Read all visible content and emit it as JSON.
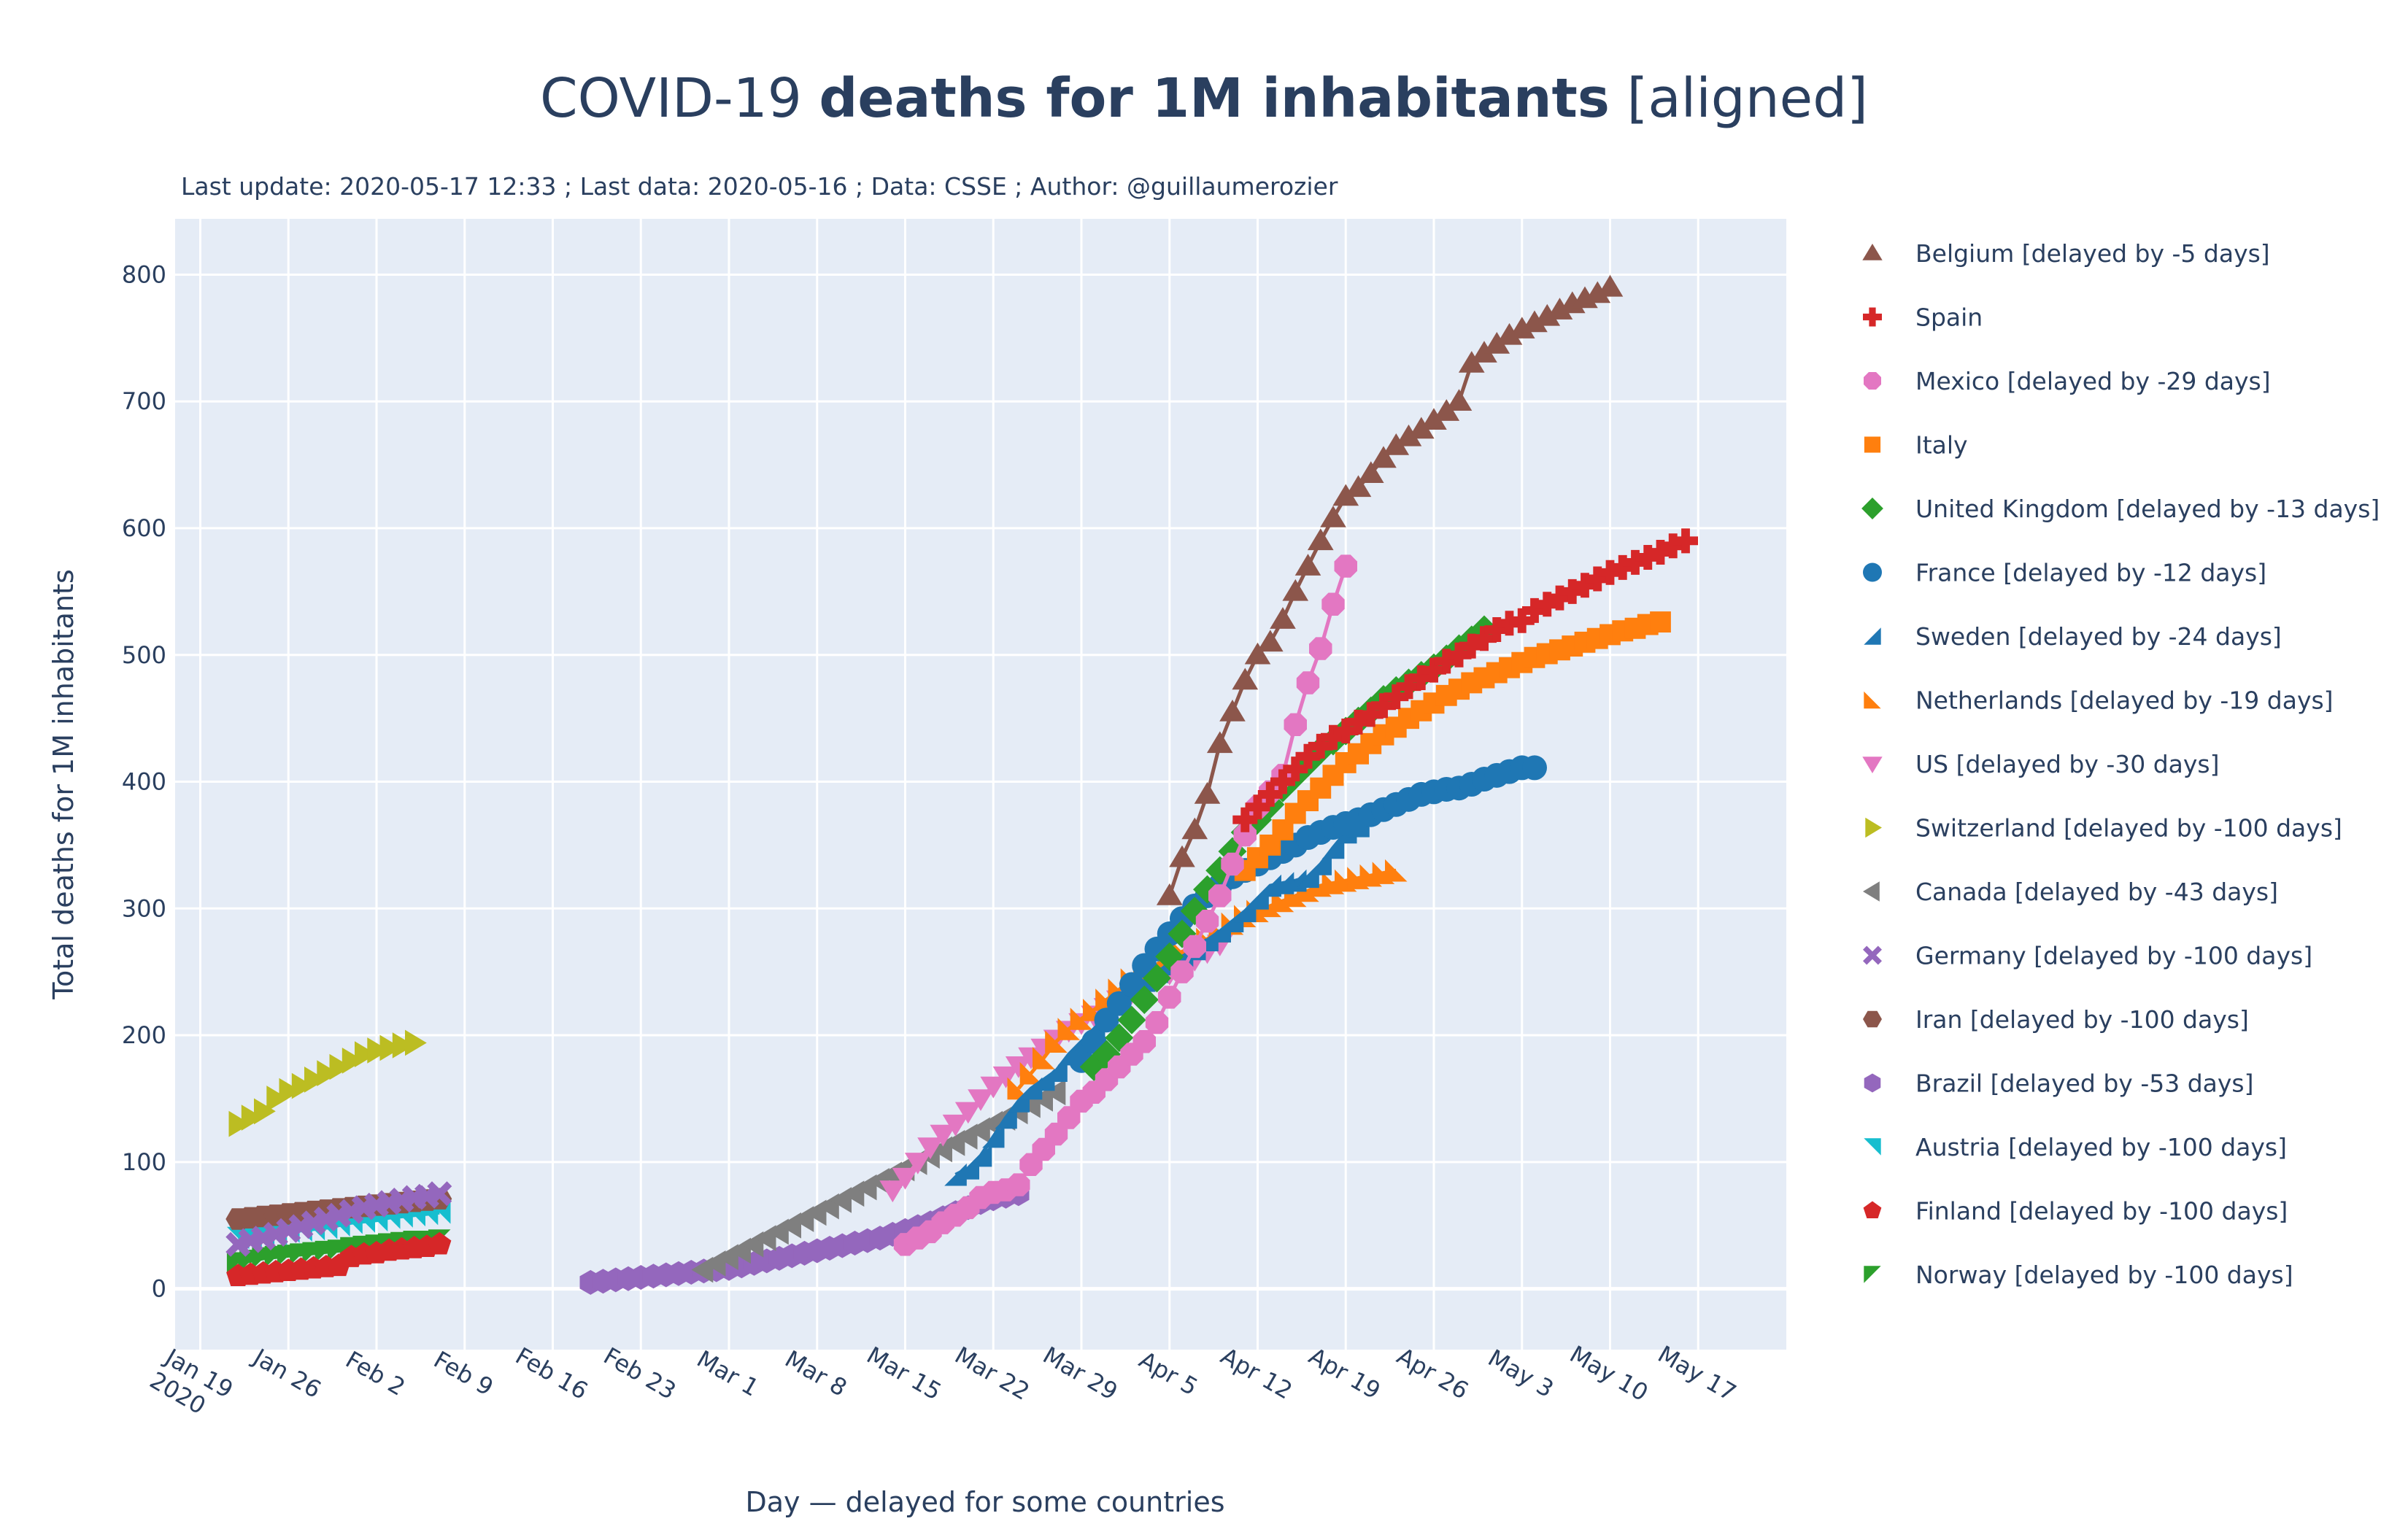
{
  "chart_data": {
    "type": "scatter",
    "mode": "lines+markers",
    "title": {
      "prefix": "COVID-19 ",
      "bold": "deaths for 1M inhabitants",
      "suffix": " [aligned]"
    },
    "subtitle": "Last update: 2020-05-17 12:33 ; Last data: 2020-05-16 ; Data: CSSE ; Author: @guillaumerozier",
    "xlabel": "Day — delayed for some countries",
    "ylabel": "Total deaths  for 1M inhabitants",
    "x_range": [
      "2020-01-17",
      "2020-05-24"
    ],
    "ylim": [
      -48,
      844
    ],
    "grid": true,
    "plot_bgcolor": "#e5ecf6",
    "x_ticks": [
      {
        "date": "2020-01-19",
        "label": "Jan 19",
        "sub": "2020"
      },
      {
        "date": "2020-01-26",
        "label": "Jan 26"
      },
      {
        "date": "2020-02-02",
        "label": "Feb 2"
      },
      {
        "date": "2020-02-09",
        "label": "Feb 9"
      },
      {
        "date": "2020-02-16",
        "label": "Feb 16"
      },
      {
        "date": "2020-02-23",
        "label": "Feb 23"
      },
      {
        "date": "2020-03-01",
        "label": "Mar 1"
      },
      {
        "date": "2020-03-08",
        "label": "Mar 8"
      },
      {
        "date": "2020-03-15",
        "label": "Mar 15"
      },
      {
        "date": "2020-03-22",
        "label": "Mar 22"
      },
      {
        "date": "2020-03-29",
        "label": "Mar 29"
      },
      {
        "date": "2020-04-05",
        "label": "Apr 5"
      },
      {
        "date": "2020-04-12",
        "label": "Apr 12"
      },
      {
        "date": "2020-04-19",
        "label": "Apr 19"
      },
      {
        "date": "2020-04-26",
        "label": "Apr 26"
      },
      {
        "date": "2020-05-03",
        "label": "May 3"
      },
      {
        "date": "2020-05-10",
        "label": "May 10"
      },
      {
        "date": "2020-05-17",
        "label": "May 17"
      }
    ],
    "y_ticks": [
      0,
      100,
      200,
      300,
      400,
      500,
      600,
      700,
      800
    ],
    "legend_position": "right",
    "series": [
      {
        "name": "Belgium [delayed by -5 days]",
        "color": "#8c564b",
        "symbol": "triangle-up",
        "line": true,
        "start": "2020-04-05",
        "values": [
          310,
          340,
          362,
          390,
          430,
          455,
          480,
          500,
          510,
          528,
          550,
          570,
          590,
          608,
          625,
          632,
          643,
          655,
          665,
          672,
          678,
          685,
          692,
          700,
          730,
          738,
          745,
          752,
          757,
          762,
          767,
          772,
          777,
          781,
          785,
          790
        ]
      },
      {
        "name": "Spain",
        "color": "#d62728",
        "symbol": "cross",
        "line": false,
        "start": "2020-04-11",
        "values": [
          370,
          380,
          390,
          400,
          410,
          420,
          428,
          435,
          440,
          447,
          453,
          460,
          467,
          475,
          482,
          488,
          495,
          500,
          507,
          513,
          520,
          525,
          527,
          535,
          540,
          545,
          550,
          555,
          560,
          565,
          569,
          573,
          577,
          581,
          586,
          590
        ]
      },
      {
        "name": "Mexico [delayed by -29 days]",
        "color": "#e377c2",
        "symbol": "octagon",
        "line": true,
        "start": "2020-03-15",
        "values": [
          35,
          40,
          45,
          52,
          58,
          64,
          72,
          76,
          78,
          82,
          98,
          110,
          122,
          135,
          148,
          155,
          165,
          175,
          185,
          195,
          210,
          230,
          250,
          270,
          290,
          310,
          335,
          358,
          380,
          392,
          405,
          445,
          478,
          505,
          540,
          570
        ]
      },
      {
        "name": "Italy",
        "color": "#ff7f0e",
        "symbol": "square",
        "line": false,
        "start": "2020-04-11",
        "values": [
          330,
          340,
          350,
          362,
          375,
          385,
          395,
          405,
          415,
          422,
          430,
          437,
          443,
          450,
          456,
          462,
          468,
          473,
          478,
          482,
          486,
          490,
          494,
          498,
          501,
          504,
          507,
          510,
          513,
          516,
          519,
          521,
          524,
          526
        ]
      },
      {
        "name": "United Kingdom [delayed by -13 days]",
        "color": "#2ca02c",
        "symbol": "diamond",
        "line": false,
        "start": "2020-03-30",
        "values": [
          175,
          185,
          198,
          212,
          228,
          245,
          262,
          280,
          298,
          315,
          330,
          345,
          360,
          370,
          382,
          395,
          405,
          415,
          425,
          432,
          440,
          448,
          456,
          465,
          472,
          478,
          484,
          490,
          497,
          505,
          512,
          520
        ]
      },
      {
        "name": "France [delayed by -12 days]",
        "color": "#1f77b4",
        "symbol": "circle",
        "line": false,
        "start": "2020-03-29",
        "values": [
          180,
          195,
          212,
          225,
          240,
          255,
          268,
          280,
          292,
          302,
          310,
          318,
          325,
          330,
          335,
          340,
          345,
          350,
          356,
          360,
          364,
          367,
          370,
          374,
          378,
          382,
          386,
          390,
          392,
          394,
          395,
          398,
          402,
          405,
          408,
          411,
          411
        ]
      },
      {
        "name": "Sweden [delayed by -24 days]",
        "color": "#1f77b4",
        "symbol": "triangle-sw",
        "line": true,
        "start": "2020-03-19",
        "values": [
          90,
          95,
          105,
          120,
          135,
          148,
          158,
          165,
          172,
          185,
          195,
          205,
          215,
          225,
          235,
          243,
          250,
          256,
          262,
          268,
          275,
          282,
          290,
          298,
          308,
          318,
          320,
          322,
          325,
          335,
          348,
          360,
          365
        ]
      },
      {
        "name": "Netherlands [delayed by -19 days]",
        "color": "#ff7f0e",
        "symbol": "triangle-se",
        "line": true,
        "start": "2020-03-24",
        "values": [
          158,
          170,
          182,
          195,
          205,
          213,
          220,
          228,
          236,
          244,
          250,
          256,
          262,
          266,
          270,
          276,
          282,
          288,
          294,
          298,
          302,
          306,
          310,
          314,
          318,
          320,
          322,
          324,
          326,
          328,
          330
        ]
      },
      {
        "name": "US [delayed by -30 days]",
        "color": "#e377c2",
        "symbol": "triangle-down",
        "line": true,
        "start": "2020-03-14",
        "values": [
          78,
          88,
          100,
          112,
          122,
          130,
          140,
          150,
          160,
          168,
          176,
          183,
          190,
          197,
          204,
          210,
          216,
          222,
          228,
          234,
          239,
          244,
          249,
          254,
          260,
          266,
          272
        ]
      },
      {
        "name": "Switzerland [delayed by -100 days]",
        "color": "#bcbd22",
        "symbol": "triangle-right",
        "line": true,
        "start": "2020-01-22",
        "values": [
          130,
          135,
          140,
          150,
          156,
          160,
          165,
          170,
          175,
          180,
          185,
          188,
          190,
          192,
          194
        ]
      },
      {
        "name": "Canada [delayed by -43 days]",
        "color": "#7f7f7f",
        "symbol": "triangle-left",
        "line": true,
        "start": "2020-02-28",
        "values": [
          15,
          20,
          25,
          30,
          35,
          40,
          45,
          50,
          55,
          60,
          65,
          70,
          75,
          80,
          85,
          90,
          95,
          100,
          105,
          110,
          115,
          120,
          125,
          130,
          135,
          140,
          145,
          150,
          155
        ]
      },
      {
        "name": "Germany [delayed by -100 days]",
        "color": "#9467bd",
        "symbol": "x",
        "line": true,
        "start": "2020-01-22",
        "values": [
          35,
          38,
          40,
          43,
          46,
          49,
          52,
          55,
          58,
          61,
          64,
          66,
          68,
          70,
          72,
          73,
          75
        ]
      },
      {
        "name": "Iran [delayed by -100 days]",
        "color": "#8c564b",
        "symbol": "hexagon",
        "line": true,
        "start": "2020-01-22",
        "values": [
          55,
          56,
          57,
          58,
          59,
          60,
          61,
          62,
          63,
          64,
          65,
          66,
          67,
          68,
          69,
          70,
          71
        ]
      },
      {
        "name": "Brazil [delayed by -53 days]",
        "color": "#9467bd",
        "symbol": "hexagon2",
        "line": true,
        "start": "2020-02-19",
        "values": [
          5,
          6,
          7,
          8,
          9,
          10,
          11,
          12,
          13,
          14,
          15,
          16,
          18,
          20,
          22,
          24,
          26,
          28,
          30,
          32,
          34,
          36,
          38,
          40,
          43,
          46,
          49,
          52,
          56,
          60,
          64,
          68,
          71,
          73,
          75
        ]
      },
      {
        "name": "Austria [delayed by -100 days]",
        "color": "#17becf",
        "symbol": "triangle-ne",
        "line": true,
        "start": "2020-01-22",
        "values": [
          40,
          41,
          42,
          43,
          45,
          46,
          47,
          48,
          50,
          52,
          53,
          54,
          56,
          57,
          58,
          59,
          60
        ]
      },
      {
        "name": "Finland [delayed by -100 days]",
        "color": "#d62728",
        "symbol": "pentagon",
        "line": true,
        "start": "2020-01-22",
        "values": [
          10,
          11,
          12,
          13,
          14,
          15,
          16,
          17,
          18,
          25,
          27,
          28,
          30,
          31,
          32,
          33,
          35
        ]
      },
      {
        "name": "Norway [delayed by -100 days]",
        "color": "#2ca02c",
        "symbol": "triangle-nw",
        "line": true,
        "start": "2020-01-22",
        "values": [
          20,
          22,
          24,
          25,
          26,
          27,
          28,
          29,
          30,
          32,
          33,
          34,
          35,
          36,
          37,
          37,
          38
        ]
      }
    ]
  }
}
